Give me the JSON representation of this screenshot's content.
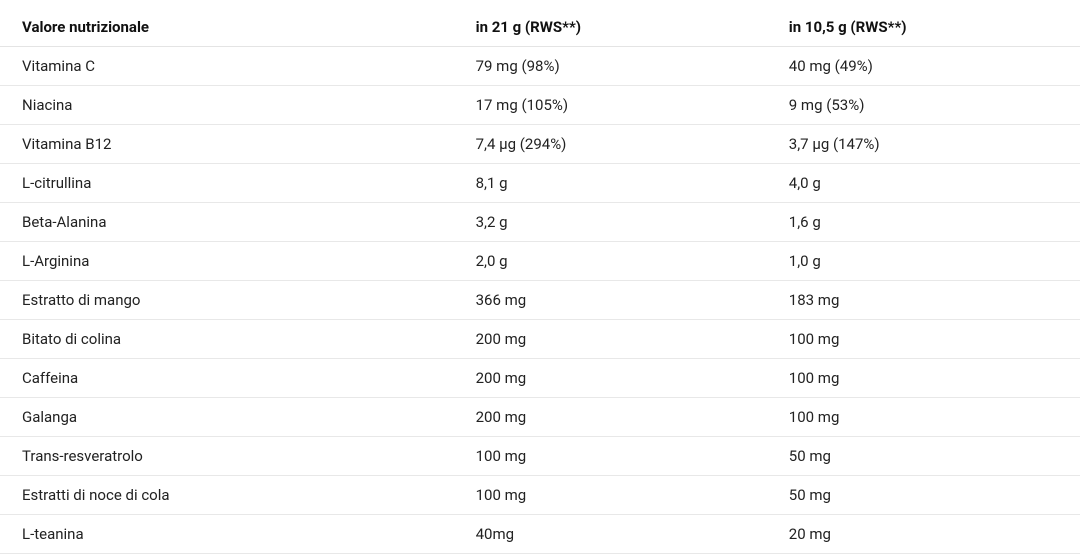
{
  "table": {
    "type": "table",
    "background_color": "#ffffff",
    "page_background": "#fdfbf4",
    "border_color": "#e8e8e8",
    "header_font_weight": 700,
    "body_font_weight": 400,
    "font_size": 15,
    "text_color": "#1a1a1a",
    "column_widths_pct": [
      42,
      29,
      29
    ],
    "columns": [
      "Valore nutrizionale",
      "in 21 g (RWS**)",
      "in 10,5 g (RWS**)"
    ],
    "rows": [
      [
        "Vitamina C",
        "79 mg (98%)",
        "40 mg (49%)"
      ],
      [
        "Niacina",
        "17 mg (105%)",
        "9 mg (53%)"
      ],
      [
        "Vitamina B12",
        "7,4 µg (294%)",
        "3,7 µg (147%)"
      ],
      [
        "L-citrullina",
        "8,1 g",
        "4,0 g"
      ],
      [
        "Beta-Alanina",
        "3,2 g",
        "1,6 g"
      ],
      [
        "L-Arginina",
        "2,0 g",
        "1,0 g"
      ],
      [
        "Estratto di mango",
        "366 mg",
        "183 mg"
      ],
      [
        "Bitato di colina",
        "200 mg",
        "100 mg"
      ],
      [
        "Caffeina",
        "200 mg",
        "100 mg"
      ],
      [
        "Galanga",
        "200 mg",
        "100 mg"
      ],
      [
        "Trans-resveratrolo",
        "100 mg",
        "50 mg"
      ],
      [
        "Estratti di noce di cola",
        "100 mg",
        "50 mg"
      ],
      [
        "L-teanina",
        "40mg",
        "20 mg"
      ]
    ]
  }
}
